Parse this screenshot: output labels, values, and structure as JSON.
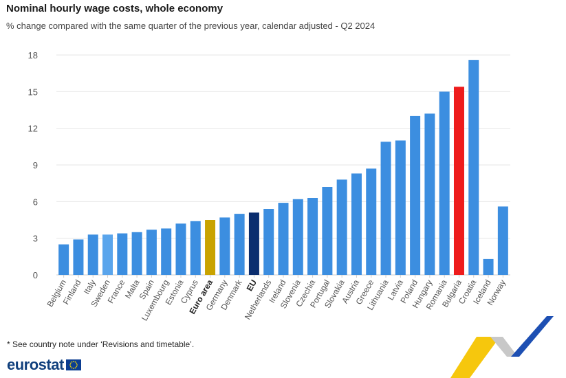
{
  "title": "Nominal hourly wage costs, whole economy",
  "subtitle": "% change compared with the same quarter of the previous year, calendar adjusted - Q2 2024",
  "footnote": "* See country note under ‘Revisions and timetable’.",
  "logo_text": "eurostat",
  "colors": {
    "default": "#3c8ee0",
    "highlight_light": "#5aa5ec",
    "euro_area": "#c9a300",
    "eu": "#0b2e6f",
    "bulgaria": "#ee1c1c",
    "grid": "#e6e6e6",
    "axis_label": "#555555"
  },
  "chart_data": {
    "type": "bar",
    "title": "Nominal hourly wage costs, whole economy",
    "subtitle": "% change compared with the same quarter of the previous year, calendar adjusted - Q2 2024",
    "xlabel": "",
    "ylabel": "",
    "ylim": [
      0,
      18
    ],
    "yticks": [
      0,
      3,
      6,
      9,
      12,
      15,
      18
    ],
    "grid": true,
    "categories": [
      "Belgium",
      "Finland",
      "Italy",
      "Sweden",
      "France",
      "Malta",
      "Spain",
      "Luxembourg",
      "Estonia",
      "Cyprus",
      "Euro area",
      "Germany",
      "Denmark",
      "EU",
      "Netherlands",
      "Ireland",
      "Slovenia",
      "Czechia",
      "Portugal",
      "Slovakia",
      "Austria",
      "Greece",
      "Lithuania",
      "Latvia",
      "Poland",
      "Hungary",
      "Romania",
      "Bulgaria",
      "Croatia",
      "Iceland",
      "Norway"
    ],
    "values": [
      2.5,
      2.9,
      3.3,
      3.3,
      3.4,
      3.5,
      3.7,
      3.8,
      4.2,
      4.4,
      4.5,
      4.7,
      5.0,
      5.1,
      5.4,
      5.9,
      6.2,
      6.3,
      7.2,
      7.8,
      8.3,
      8.7,
      10.9,
      11.0,
      13.0,
      13.2,
      15.0,
      15.4,
      17.6,
      1.3,
      5.6
    ],
    "bar_colors": [
      "default",
      "default",
      "default",
      "highlight_light",
      "default",
      "default",
      "default",
      "default",
      "default",
      "default",
      "euro_area",
      "default",
      "default",
      "eu",
      "default",
      "default",
      "default",
      "default",
      "default",
      "default",
      "default",
      "default",
      "default",
      "default",
      "default",
      "default",
      "default",
      "bulgaria",
      "default",
      "default",
      "default"
    ],
    "bold_labels": [
      "Euro area",
      "EU"
    ]
  }
}
